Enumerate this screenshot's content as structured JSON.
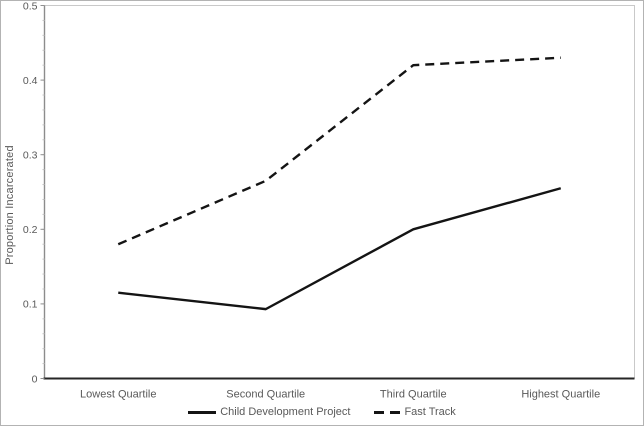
{
  "chart_data": {
    "type": "line",
    "title": "",
    "xlabel": "",
    "ylabel": "Proportion Incarcerated",
    "categories": [
      "Lowest Quartile",
      "Second Quartile",
      "Third Quartile",
      "Highest Quartile"
    ],
    "series": [
      {
        "name": "Child Development Project",
        "style": "solid",
        "color": "#141414",
        "values": [
          0.115,
          0.093,
          0.2,
          0.255
        ]
      },
      {
        "name": "Fast Track",
        "style": "dashed",
        "color": "#141414",
        "values": [
          0.18,
          0.265,
          0.42,
          0.43
        ]
      }
    ],
    "ylim": [
      0,
      0.5
    ],
    "ytick_step": 0.1,
    "ytick_labels": [
      "0",
      "0.1",
      "0.2",
      "0.3",
      "0.4",
      "0.5"
    ],
    "grid": false,
    "legend_position": "bottom"
  },
  "colors": {
    "text": "#595959",
    "y_axis_line": "#8c8c8c",
    "x_axis_line": "#262626",
    "plot_border": "#c9c9c9",
    "tick": "#909090",
    "minor_tick": "#c4c4c4",
    "series_line": "#141414",
    "figure_border": "#b3b3b3"
  }
}
